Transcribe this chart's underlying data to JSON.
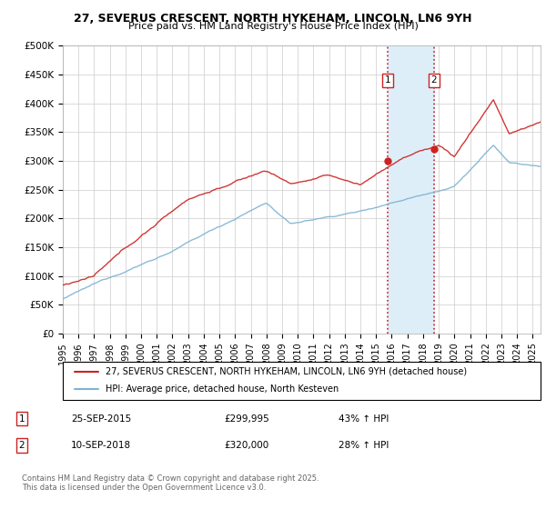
{
  "title_line1": "27, SEVERUS CRESCENT, NORTH HYKEHAM, LINCOLN, LN6 9YH",
  "title_line2": "Price paid vs. HM Land Registry's House Price Index (HPI)",
  "ylabel_values": [
    "£0",
    "£50K",
    "£100K",
    "£150K",
    "£200K",
    "£250K",
    "£300K",
    "£350K",
    "£400K",
    "£450K",
    "£500K"
  ],
  "ylim": [
    0,
    500000
  ],
  "xlim_start": 1995.0,
  "xlim_end": 2025.5,
  "transaction1_date": "25-SEP-2015",
  "transaction1_x": 2015.73,
  "transaction1_price": 299995,
  "transaction1_price_str": "£299,995",
  "transaction1_hpi": "43% ↑ HPI",
  "transaction2_date": "10-SEP-2018",
  "transaction2_x": 2018.69,
  "transaction2_price": 320000,
  "transaction2_price_str": "£320,000",
  "transaction2_hpi": "28% ↑ HPI",
  "shaded_region_x1": 2015.73,
  "shaded_region_x2": 2018.69,
  "legend_label1": "27, SEVERUS CRESCENT, NORTH HYKEHAM, LINCOLN, LN6 9YH (detached house)",
  "legend_label2": "HPI: Average price, detached house, North Kesteven",
  "footnote_line1": "Contains HM Land Registry data © Crown copyright and database right 2025.",
  "footnote_line2": "This data is licensed under the Open Government Licence v3.0.",
  "line1_color": "#cc2222",
  "line2_color": "#7fb3d3",
  "shaded_color": "#ddeef8",
  "grid_color": "#cccccc",
  "background_color": "#ffffff"
}
